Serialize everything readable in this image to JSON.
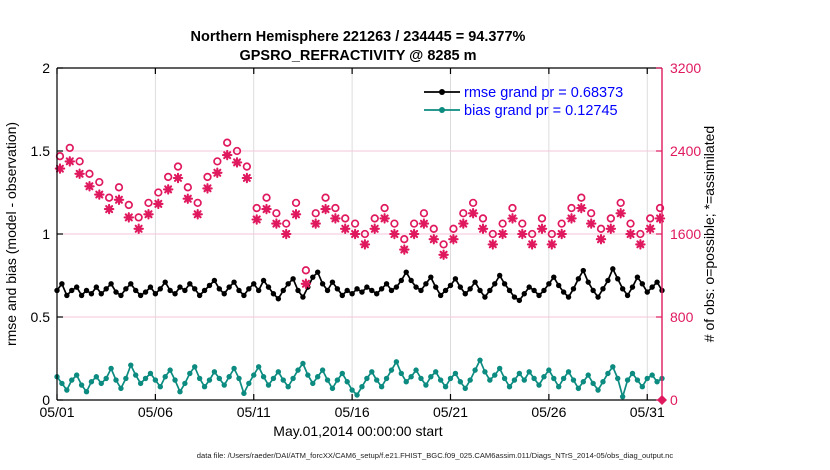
{
  "title": {
    "line1": "Northern Hemisphere 221263 / 234445 = 94.377%",
    "line2": "GPSRO_REFRACTIVITY @ 8285 m"
  },
  "footer": "data file: /Users/raeder/DAI/ATM_forcXX/CAM6_setup/f.e21.FHIST_BGC.f09_025.CAM6assim.011/Diags_NTrS_2014-05/obs_diag_output.nc",
  "colors": {
    "pink": "#e0195f",
    "teal": "#0c8b80",
    "black": "#000000",
    "legend_text": "#0000ff",
    "grid_vertical": "#d9d9d9",
    "grid_horizontal": "#f6c6d9"
  },
  "legend": {
    "items": [
      {
        "label": "rmse grand pr = 0.68373",
        "color": "#000000"
      },
      {
        "label": "bias grand pr = 0.12745",
        "color": "#0c8b80"
      }
    ],
    "text_color": "#0000ff"
  },
  "chart_data": {
    "type": "line",
    "x_axis": {
      "label": "May.01,2014 00:00:00 start",
      "tick_labels": [
        "05/01",
        "05/06",
        "05/11",
        "05/16",
        "05/21",
        "05/26",
        "05/31"
      ],
      "tick_days": [
        0,
        5,
        10,
        15,
        20,
        25,
        30
      ],
      "range_days": [
        0,
        30.75
      ]
    },
    "y_left": {
      "label": "rmse and bias (model - observation)",
      "tick_labels": [
        "0",
        "0.5",
        "1",
        "1.5",
        "2"
      ],
      "tick_values": [
        0,
        0.5,
        1,
        1.5,
        2
      ],
      "range": [
        0,
        2
      ],
      "color": "#000000"
    },
    "y_right": {
      "label": "# of obs: o=possible; *=assimilated",
      "tick_labels": [
        "0",
        "800",
        "1600",
        "2400",
        "3200"
      ],
      "tick_values": [
        0,
        800,
        1600,
        2400,
        3200
      ],
      "range": [
        0,
        3200
      ],
      "color": "#e0195f",
      "grid_values": [
        800,
        1600,
        2400
      ]
    },
    "series": [
      {
        "name": "rmse",
        "axis": "left",
        "color": "#000000",
        "marker": "dot",
        "x_start_day": 0,
        "x_step_days": 0.25,
        "values": [
          0.66,
          0.7,
          0.63,
          0.66,
          0.68,
          0.63,
          0.66,
          0.64,
          0.68,
          0.64,
          0.67,
          0.7,
          0.65,
          0.63,
          0.67,
          0.7,
          0.66,
          0.63,
          0.65,
          0.68,
          0.64,
          0.67,
          0.71,
          0.66,
          0.64,
          0.68,
          0.66,
          0.7,
          0.67,
          0.63,
          0.66,
          0.69,
          0.72,
          0.67,
          0.64,
          0.68,
          0.71,
          0.66,
          0.63,
          0.67,
          0.7,
          0.66,
          0.72,
          0.68,
          0.64,
          0.61,
          0.66,
          0.7,
          0.73,
          0.66,
          0.62,
          0.68,
          0.74,
          0.77,
          0.7,
          0.66,
          0.71,
          0.67,
          0.63,
          0.66,
          0.64,
          0.67,
          0.65,
          0.68,
          0.66,
          0.64,
          0.67,
          0.7,
          0.66,
          0.68,
          0.72,
          0.77,
          0.72,
          0.68,
          0.66,
          0.7,
          0.74,
          0.68,
          0.63,
          0.66,
          0.69,
          0.73,
          0.68,
          0.64,
          0.67,
          0.71,
          0.66,
          0.62,
          0.66,
          0.7,
          0.75,
          0.7,
          0.66,
          0.62,
          0.6,
          0.64,
          0.68,
          0.66,
          0.63,
          0.66,
          0.7,
          0.74,
          0.69,
          0.65,
          0.62,
          0.67,
          0.73,
          0.78,
          0.71,
          0.66,
          0.62,
          0.67,
          0.72,
          0.79,
          0.73,
          0.67,
          0.63,
          0.68,
          0.74,
          0.7,
          0.65,
          0.68,
          0.71,
          0.66
        ]
      },
      {
        "name": "bias",
        "axis": "left",
        "color": "#0c8b80",
        "marker": "dot",
        "x_start_day": 0,
        "x_step_days": 0.25,
        "values": [
          0.14,
          0.1,
          0.06,
          0.12,
          0.15,
          0.09,
          0.05,
          0.11,
          0.14,
          0.1,
          0.13,
          0.19,
          0.12,
          0.07,
          0.13,
          0.21,
          0.15,
          0.1,
          0.13,
          0.16,
          0.12,
          0.08,
          0.14,
          0.18,
          0.12,
          0.05,
          0.1,
          0.16,
          0.2,
          0.13,
          0.08,
          0.12,
          0.17,
          0.13,
          0.09,
          0.14,
          0.19,
          0.13,
          0.04,
          0.1,
          0.15,
          0.2,
          0.14,
          0.09,
          0.13,
          0.17,
          0.12,
          0.08,
          0.13,
          0.18,
          0.22,
          0.15,
          0.1,
          0.14,
          0.18,
          0.12,
          0.07,
          0.12,
          0.16,
          0.11,
          0.06,
          0.03,
          0.08,
          0.13,
          0.17,
          0.12,
          0.08,
          0.13,
          0.18,
          0.23,
          0.16,
          0.11,
          0.14,
          0.18,
          0.13,
          0.09,
          0.14,
          0.17,
          0.12,
          0.08,
          0.13,
          0.16,
          0.11,
          0.07,
          0.12,
          0.18,
          0.24,
          0.17,
          0.12,
          0.15,
          0.19,
          0.13,
          0.08,
          0.12,
          0.16,
          0.12,
          0.17,
          0.13,
          0.09,
          0.14,
          0.18,
          0.13,
          0.08,
          0.13,
          0.17,
          0.12,
          0.07,
          0.11,
          0.15,
          0.1,
          0.06,
          0.11,
          0.16,
          0.2,
          0.13,
          0.02,
          0.12,
          0.16,
          0.12,
          0.08,
          0.13,
          0.15,
          0.11,
          0.13
        ]
      },
      {
        "name": "possible",
        "axis": "right",
        "color": "#e0195f",
        "marker": "open-circle",
        "x_start_day": 0.15,
        "x_step_days": 0.5,
        "values": [
          2350,
          2430,
          2300,
          2180,
          2100,
          1950,
          2050,
          1880,
          1760,
          1900,
          2000,
          2150,
          2250,
          2050,
          1900,
          2150,
          2300,
          2480,
          2400,
          2250,
          1850,
          1950,
          1800,
          1700,
          1900,
          1250,
          1800,
          1950,
          1850,
          1750,
          1700,
          1600,
          1750,
          1850,
          1700,
          1550,
          1700,
          1800,
          1650,
          1500,
          1650,
          1800,
          1900,
          1750,
          1600,
          1700,
          1850,
          1700,
          1600,
          1750,
          1600,
          1700,
          1850,
          1950,
          1800,
          1650,
          1750,
          1900,
          1700,
          1600,
          1750,
          1850
        ]
      },
      {
        "name": "assimilated",
        "axis": "right",
        "color": "#e0195f",
        "marker": "asterisk",
        "x_start_day": 0.15,
        "x_step_days": 0.5,
        "values": [
          2230,
          2300,
          2180,
          2060,
          1980,
          1840,
          1930,
          1760,
          1650,
          1790,
          1890,
          2030,
          2140,
          1940,
          1790,
          2040,
          2190,
          2360,
          2290,
          2140,
          1740,
          1840,
          1700,
          1600,
          1790,
          1120,
          1700,
          1840,
          1750,
          1650,
          1600,
          1500,
          1650,
          1750,
          1600,
          1450,
          1600,
          1700,
          1550,
          1400,
          1550,
          1700,
          1800,
          1650,
          1500,
          1600,
          1750,
          1600,
          1500,
          1650,
          1500,
          1600,
          1750,
          1850,
          1700,
          1550,
          1650,
          1800,
          1600,
          1500,
          1650,
          1750
        ]
      }
    ],
    "end_marker": {
      "name": "axis-end-diamond",
      "x_day": 30.75,
      "value": 0,
      "axis": "right",
      "color": "#e0195f"
    }
  }
}
